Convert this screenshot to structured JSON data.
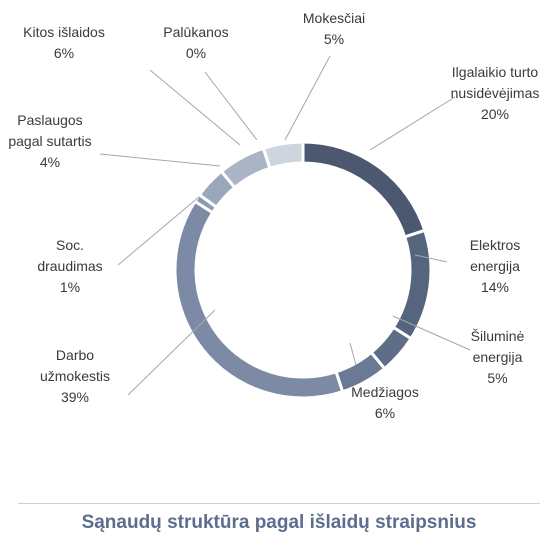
{
  "chart_data": {
    "type": "donut",
    "title": "Sąnaudų struktūra pagal išlaidų straipsnius",
    "categories": [
      "Ilgalaikio turto nusidėvėjimas",
      "Elektros energija",
      "Šiluminė energija",
      "Medžiagos",
      "Darbo užmokestis",
      "Soc. draudimas",
      "Paslaugos pagal sutartis",
      "Kitos išlaidos",
      "Palūkanos",
      "Mokesčiai"
    ],
    "values": [
      20,
      14,
      5,
      6,
      39,
      1,
      4,
      6,
      0,
      5
    ],
    "value_labels": [
      "20%",
      "14%",
      "5%",
      "6%",
      "39%",
      "1%",
      "4%",
      "6%",
      "0%",
      "5%"
    ],
    "colors": [
      "#4b5870",
      "#56657e",
      "#5f6e88",
      "#6a7a94",
      "#7c8aa6",
      "#8b99b2",
      "#9aa6bc",
      "#aab4c7",
      "#bcc4d3",
      "#cfd5df"
    ]
  }
}
